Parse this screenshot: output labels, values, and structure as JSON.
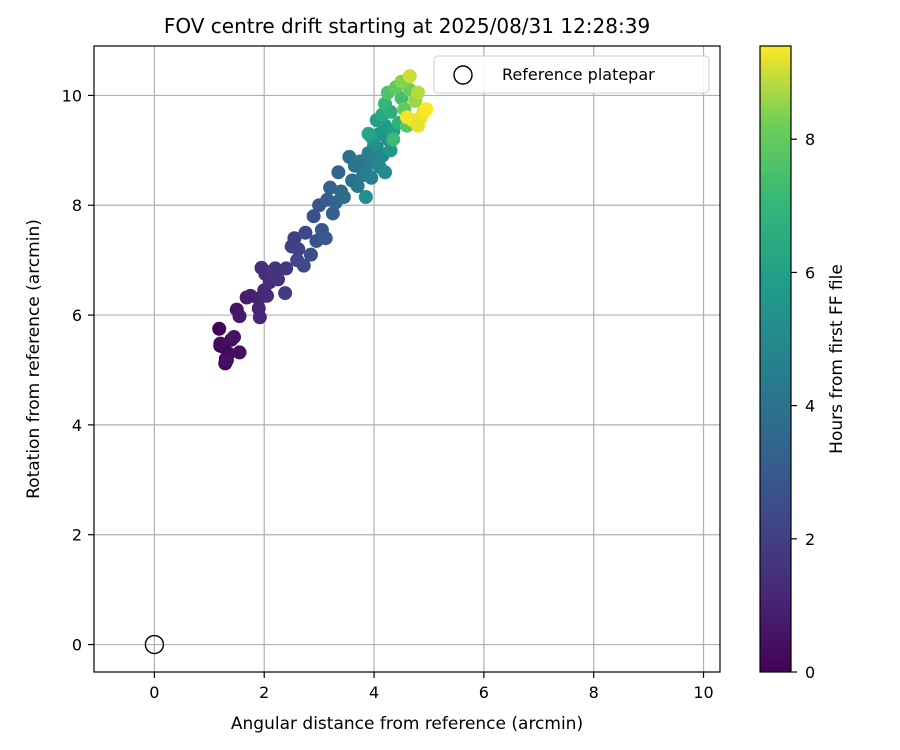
{
  "chart_data": {
    "type": "scatter",
    "title": "FOV centre drift starting at 2025/08/31 12:28:39",
    "xlabel": "Angular distance from reference (arcmin)",
    "ylabel": "Rotation from reference (arcmin)",
    "xlim": [
      -1.1,
      10.3
    ],
    "ylim": [
      -0.5,
      10.9
    ],
    "xticks": [
      0,
      2,
      4,
      6,
      8,
      10
    ],
    "yticks": [
      0,
      2,
      4,
      6,
      8,
      10
    ],
    "grid": true,
    "legend": {
      "label": "Reference platepar",
      "placement": "top-right"
    },
    "reference_point": {
      "x": 0,
      "y": 0
    },
    "colorbar": {
      "label": "Hours from first FF file",
      "colormap": "viridis",
      "range": [
        0,
        9.4
      ],
      "ticks": [
        0,
        2,
        4,
        6,
        8
      ]
    },
    "series": [
      {
        "points": [
          [
            1.18,
            5.75,
            0.0
          ],
          [
            1.2,
            5.44,
            0.05
          ],
          [
            1.26,
            5.42,
            0.1
          ],
          [
            1.3,
            5.2,
            0.15
          ],
          [
            1.29,
            5.12,
            0.2
          ],
          [
            1.35,
            5.3,
            0.25
          ],
          [
            1.2,
            5.48,
            0.3
          ],
          [
            1.4,
            5.55,
            0.35
          ],
          [
            1.55,
            5.32,
            0.4
          ],
          [
            1.32,
            5.18,
            0.45
          ],
          [
            1.45,
            5.6,
            0.5
          ],
          [
            1.5,
            6.1,
            0.6
          ],
          [
            1.55,
            5.98,
            0.7
          ],
          [
            1.68,
            6.32,
            0.8
          ],
          [
            1.75,
            6.35,
            0.9
          ],
          [
            1.9,
            6.3,
            1.0
          ],
          [
            1.9,
            6.12,
            1.1
          ],
          [
            1.92,
            5.96,
            1.15
          ],
          [
            2.0,
            6.45,
            1.2
          ],
          [
            2.05,
            6.35,
            1.25
          ],
          [
            2.1,
            6.6,
            1.3
          ],
          [
            1.95,
            6.86,
            1.35
          ],
          [
            2.02,
            6.75,
            1.4
          ],
          [
            2.2,
            6.85,
            1.5
          ],
          [
            2.25,
            6.65,
            1.55
          ],
          [
            2.15,
            6.8,
            1.6
          ],
          [
            2.4,
            6.85,
            1.75
          ],
          [
            2.38,
            6.4,
            1.8
          ],
          [
            2.55,
            7.4,
            1.9
          ],
          [
            2.5,
            7.25,
            2.0
          ],
          [
            2.62,
            7.2,
            2.1
          ],
          [
            2.6,
            7.0,
            2.2
          ],
          [
            2.75,
            7.5,
            2.3
          ],
          [
            2.72,
            6.9,
            2.4
          ],
          [
            2.85,
            7.1,
            2.5
          ],
          [
            2.9,
            7.8,
            2.6
          ],
          [
            2.95,
            7.35,
            2.7
          ],
          [
            3.0,
            8.0,
            2.8
          ],
          [
            3.05,
            7.55,
            2.9
          ],
          [
            3.12,
            7.4,
            3.0
          ],
          [
            3.15,
            8.1,
            3.1
          ],
          [
            3.25,
            7.85,
            3.2
          ],
          [
            3.2,
            8.32,
            3.3
          ],
          [
            3.3,
            8.05,
            3.4
          ],
          [
            3.35,
            8.6,
            3.5
          ],
          [
            3.4,
            8.25,
            3.6
          ],
          [
            3.45,
            8.15,
            3.7
          ],
          [
            3.55,
            8.88,
            3.8
          ],
          [
            3.6,
            8.45,
            3.9
          ],
          [
            3.65,
            8.72,
            4.0
          ],
          [
            3.7,
            8.35,
            4.1
          ],
          [
            3.75,
            8.8,
            4.2
          ],
          [
            3.8,
            8.55,
            4.3
          ],
          [
            3.85,
            8.65,
            4.4
          ],
          [
            3.9,
            8.95,
            4.5
          ],
          [
            3.95,
            8.5,
            4.6
          ],
          [
            4.0,
            8.8,
            4.7
          ],
          [
            4.05,
            9.05,
            4.8
          ],
          [
            4.1,
            8.7,
            4.9
          ],
          [
            4.15,
            8.9,
            5.0
          ],
          [
            4.2,
            8.6,
            5.1
          ],
          [
            3.85,
            8.15,
            5.2
          ],
          [
            4.0,
            9.1,
            5.3
          ],
          [
            4.25,
            9.2,
            5.4
          ],
          [
            4.1,
            9.3,
            5.5
          ],
          [
            4.3,
            9.0,
            5.6
          ],
          [
            3.95,
            9.25,
            5.7
          ],
          [
            4.2,
            9.45,
            5.8
          ],
          [
            4.35,
            9.35,
            5.9
          ],
          [
            4.05,
            9.55,
            6.0
          ],
          [
            3.9,
            9.3,
            6.2
          ],
          [
            4.15,
            9.65,
            6.4
          ],
          [
            4.3,
            9.7,
            6.6
          ],
          [
            4.45,
            9.5,
            6.8
          ],
          [
            4.2,
            9.85,
            7.0
          ],
          [
            4.35,
            9.2,
            7.2
          ],
          [
            4.5,
            9.95,
            7.4
          ],
          [
            4.25,
            10.05,
            7.6
          ],
          [
            4.6,
            9.45,
            7.8
          ],
          [
            4.4,
            10.15,
            7.9
          ],
          [
            4.55,
            9.75,
            8.0
          ],
          [
            4.65,
            10.1,
            8.2
          ],
          [
            4.5,
            10.25,
            8.4
          ],
          [
            4.75,
            9.9,
            8.6
          ],
          [
            4.8,
            10.05,
            8.8
          ],
          [
            4.65,
            10.35,
            9.0
          ],
          [
            4.9,
            9.7,
            9.1
          ],
          [
            4.7,
            9.55,
            9.2
          ],
          [
            4.85,
            9.6,
            9.3
          ],
          [
            4.95,
            9.75,
            9.4
          ],
          [
            4.6,
            9.6,
            9.3
          ],
          [
            4.8,
            9.45,
            9.2
          ]
        ]
      }
    ]
  }
}
